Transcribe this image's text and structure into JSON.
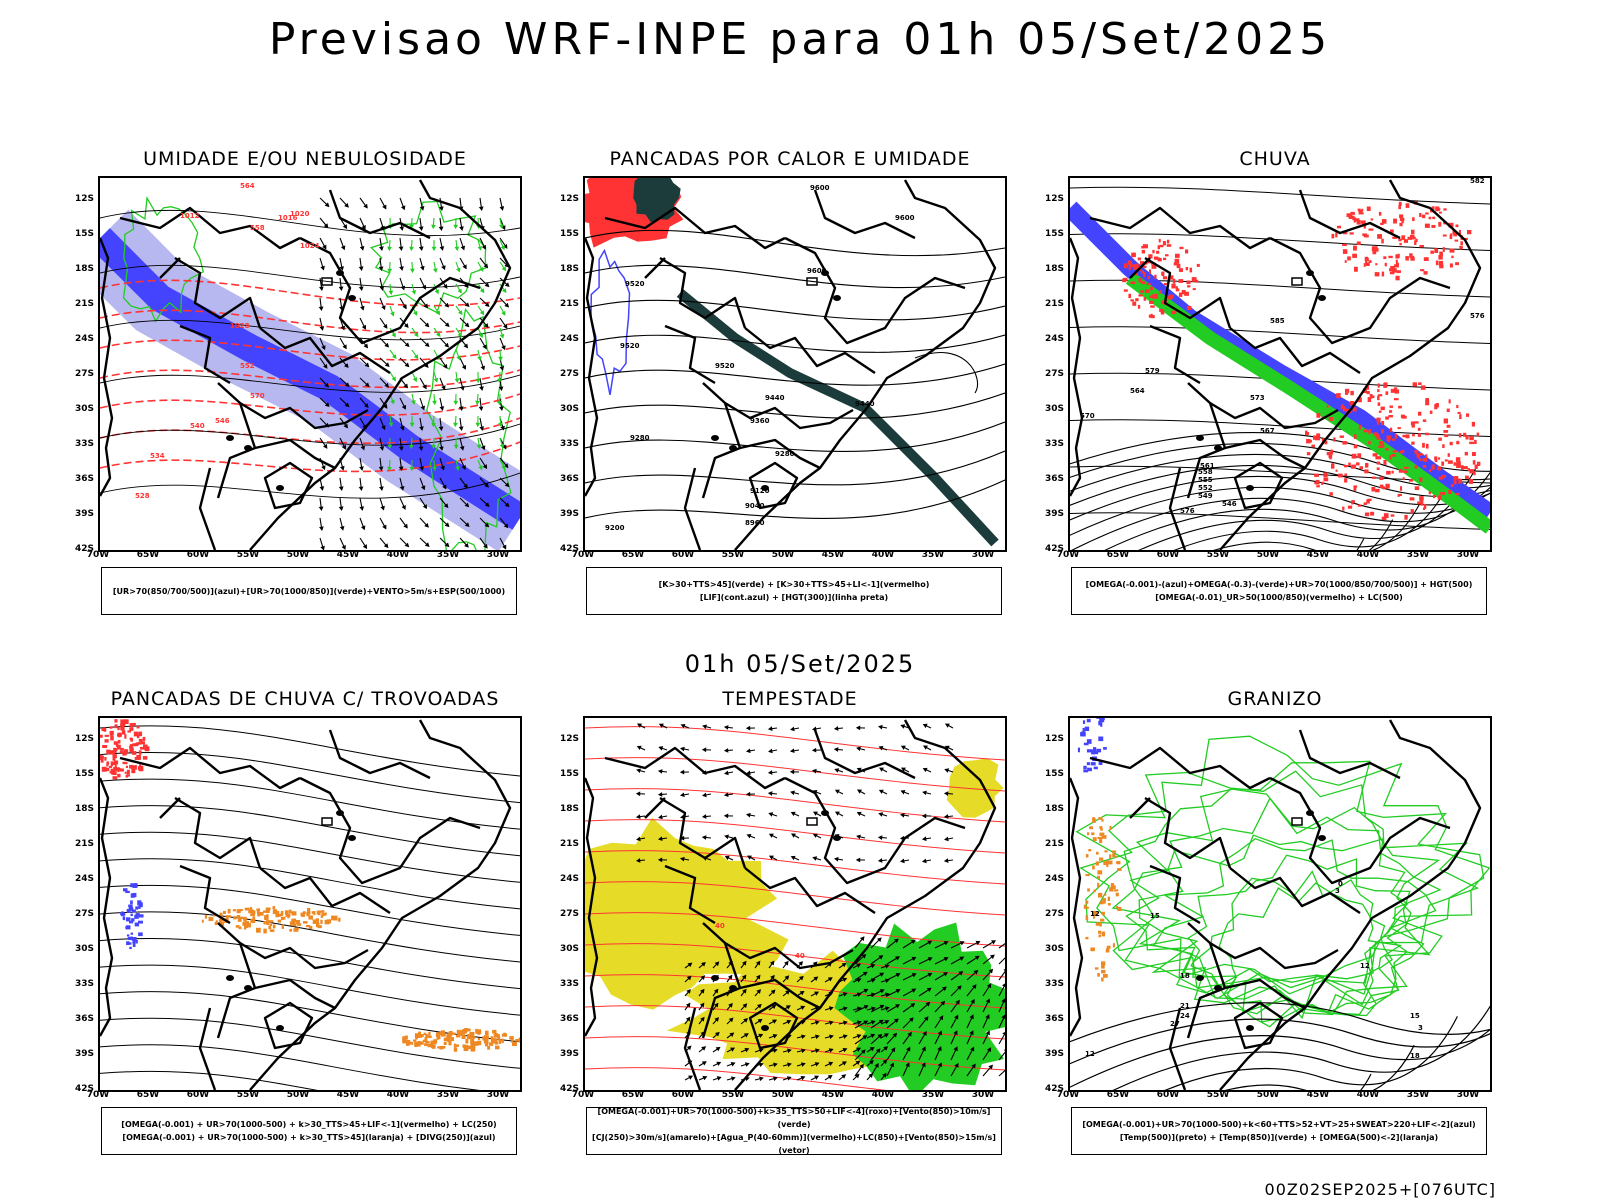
{
  "header": {
    "title": "Previsao WRF-INPE  para 01h 05/Set/2025"
  },
  "middle_title": "01h 05/Set/2025",
  "footer": "00Z02SEP2025+[076UTC]",
  "axes": {
    "lat_labels": [
      "12S",
      "15S",
      "18S",
      "21S",
      "24S",
      "27S",
      "30S",
      "33S",
      "36S",
      "39S",
      "42S"
    ],
    "lon_labels": [
      "70W",
      "65W",
      "60W",
      "55W",
      "50W",
      "45W",
      "40W",
      "35W",
      "30W"
    ]
  },
  "colors": {
    "blue": "#4444ff",
    "green": "#22cc22",
    "red": "#ff3333",
    "orange": "#ee8822",
    "yellow": "#e6dc28",
    "darkteal": "#1c3c3c",
    "lavender": "#b8b8f0"
  },
  "panels": [
    {
      "id": "umidade",
      "title": "UMIDADE E/OU NEBULOSIDADE",
      "legend": [
        "[UR>70(850/700/500)](azul)+[UR>70(1000/850)](verde)+VENTO>5m/s+ESP(500/1000)"
      ],
      "labels": [
        "1012",
        "1016",
        "1020",
        "1024",
        "1028",
        "570",
        "564",
        "558",
        "552",
        "546",
        "540",
        "534",
        "528"
      ]
    },
    {
      "id": "pancadas-calor",
      "title": "PANCADAS POR CALOR E UMIDADE",
      "legend": [
        "[K>30+TTS>45](verde) + [K>30+TTS>45+LI<-1](vermelho)",
        "[LIF](cont.azul) + [HGT(300)](linha preta)"
      ],
      "labels": [
        "9600",
        "9600",
        "9600",
        "9520",
        "9520",
        "9520",
        "9440",
        "9440",
        "9360",
        "9280",
        "9280",
        "9120",
        "9040",
        "8960",
        "9200"
      ]
    },
    {
      "id": "chuva",
      "title": "CHUVA",
      "legend": [
        "[OMEGA(-0.001)-(azul)+OMEGA(-0.3)-(verde)+UR>70(1000/850/700/500)] + HGT(500)",
        "[OMEGA(-0.01)_UR>50(1000/850)(vermelho) + LC(500)"
      ],
      "labels": [
        "582",
        "585",
        "576",
        "579",
        "573",
        "570",
        "567",
        "564",
        "561",
        "558",
        "555",
        "552",
        "549",
        "546",
        "576"
      ]
    },
    {
      "id": "pancadas-trovoadas",
      "title": "PANCADAS DE CHUVA C/ TROVOADAS",
      "legend": [
        "[OMEGA(-0.001) + UR>70(1000-500) + k>30_TTS>45+LIF<-1](vermelho) + LC(250)",
        "[OMEGA(-0.001) + UR>70(1000-500) + k>30_TTS>45](laranja) + [DIVG(250)](azul)"
      ],
      "labels": []
    },
    {
      "id": "tempestade",
      "title": "TEMPESTADE",
      "legend": [
        "[OMEGA(-0.001)+UR>70(1000-500)+k>35_TTS>50+LIF<-4](roxo)+[Vento(850)>10m/s](verde)",
        "[CJ(250)>30m/s](amarelo)+[Agua_P(40-60mm)](vermelho)+LC(850)+[Vento(850)>15m/s](vetor)"
      ],
      "labels": [
        "40",
        "40"
      ]
    },
    {
      "id": "granizo",
      "title": "GRANIZO",
      "legend": [
        "[OMEGA(-0.001)+UR>70(1000-500)+k<60+TTS>52+VT>25+SWEAT>220+LIF<-2](azul)",
        "[Temp(500)](preto) + [Temp(850)](verde) + [OMEGA(500)<-2](laranja)"
      ],
      "labels": [
        "12",
        "12",
        "15",
        "18",
        "21",
        "24",
        "27",
        "3",
        "0",
        "12",
        "15",
        "18",
        "3"
      ]
    }
  ]
}
